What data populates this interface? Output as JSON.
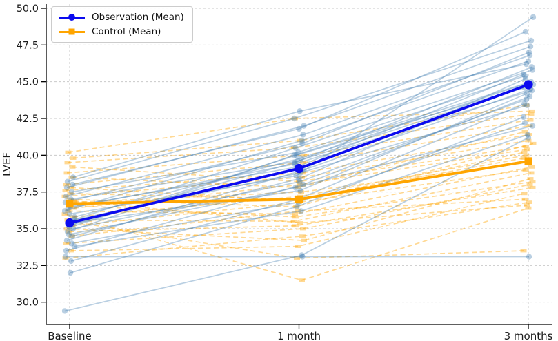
{
  "legend": {
    "items": [
      {
        "label": "Observation (Mean)",
        "color": "#0b0bef",
        "marker": "circle"
      },
      {
        "label": "Control (Mean)",
        "color": "#ffa500",
        "marker": "square"
      }
    ]
  },
  "chart_data": {
    "type": "line",
    "subtype": "spaghetti-paired-trajectories",
    "title": "",
    "xlabel": "",
    "ylabel": "LVEF",
    "categories": [
      "Baseline",
      "1 month",
      "3 months"
    ],
    "yticks": [
      30.0,
      32.5,
      35.0,
      37.5,
      40.0,
      42.5,
      45.0,
      47.5,
      50.0
    ],
    "ylim": [
      28.5,
      50.3
    ],
    "grid": true,
    "grid_style": "dashed",
    "legend_position": "upper left",
    "series": [
      {
        "name": "Observation (Mean)",
        "color": "#0b0bef",
        "style": "solid",
        "marker": "circle",
        "values": [
          35.4,
          39.1,
          44.8
        ]
      },
      {
        "name": "Control (Mean)",
        "color": "#ffa500",
        "style": "solid",
        "marker": "square",
        "values": [
          36.7,
          37.0,
          39.6
        ]
      }
    ],
    "individual_trajectories": {
      "observation": {
        "color": "#4682b4",
        "opacity": 0.38,
        "style": "solid",
        "marker": "circle",
        "lines": [
          [
            29.4,
            33.2,
            41.2
          ],
          [
            32.0,
            36.5,
            42.6
          ],
          [
            33.1,
            33.1,
            33.1
          ],
          [
            32.8,
            37.0,
            43.5
          ],
          [
            33.5,
            38.0,
            44.0
          ],
          [
            34.0,
            36.8,
            42.2
          ],
          [
            34.2,
            39.0,
            44.5
          ],
          [
            34.5,
            38.4,
            45.2
          ],
          [
            34.8,
            40.0,
            45.0
          ],
          [
            35.0,
            38.2,
            43.8
          ],
          [
            35.2,
            39.5,
            46.0
          ],
          [
            35.4,
            37.6,
            44.2
          ],
          [
            35.5,
            40.5,
            45.8
          ],
          [
            35.8,
            39.8,
            44.9
          ],
          [
            36.0,
            38.6,
            49.4
          ],
          [
            36.2,
            41.0,
            46.4
          ],
          [
            36.5,
            39.2,
            45.5
          ],
          [
            36.8,
            40.8,
            47.0
          ],
          [
            37.0,
            39.6,
            44.6
          ],
          [
            37.2,
            41.4,
            46.8
          ],
          [
            37.5,
            40.2,
            45.4
          ],
          [
            37.8,
            42.0,
            47.4
          ],
          [
            38.0,
            41.8,
            48.4
          ],
          [
            38.2,
            42.5,
            47.8
          ],
          [
            38.5,
            43.0,
            46.2
          ],
          [
            36.4,
            39.4,
            44.4
          ],
          [
            35.6,
            38.8,
            43.4
          ],
          [
            34.6,
            37.8,
            42.0
          ],
          [
            33.8,
            36.2,
            41.4
          ],
          [
            35.1,
            40.0,
            44.8
          ]
        ]
      },
      "control": {
        "color": "#ffa500",
        "opacity": 0.42,
        "style": "dashed",
        "marker": "dash",
        "lines": [
          [
            36.0,
            31.5,
            36.4
          ],
          [
            35.5,
            33.0,
            33.5
          ],
          [
            33.0,
            34.5,
            36.8
          ],
          [
            33.5,
            33.8,
            37.4
          ],
          [
            34.0,
            35.0,
            38.0
          ],
          [
            34.5,
            36.2,
            37.0
          ],
          [
            35.0,
            34.2,
            38.4
          ],
          [
            35.2,
            36.8,
            39.0
          ],
          [
            35.6,
            35.5,
            38.8
          ],
          [
            35.8,
            37.2,
            40.0
          ],
          [
            36.2,
            36.0,
            39.2
          ],
          [
            36.4,
            38.0,
            40.4
          ],
          [
            36.6,
            35.8,
            38.2
          ],
          [
            36.8,
            37.5,
            39.5
          ],
          [
            37.0,
            36.5,
            40.8
          ],
          [
            37.2,
            38.5,
            41.0
          ],
          [
            37.4,
            37.0,
            39.8
          ],
          [
            37.6,
            38.8,
            41.4
          ],
          [
            37.8,
            36.9,
            40.2
          ],
          [
            38.0,
            39.5,
            42.0
          ],
          [
            38.5,
            37.8,
            41.6
          ],
          [
            38.8,
            40.0,
            42.4
          ],
          [
            39.2,
            38.2,
            40.6
          ],
          [
            39.5,
            40.5,
            42.8
          ],
          [
            39.8,
            41.0,
            43.4
          ],
          [
            40.2,
            42.5,
            43.0
          ],
          [
            36.9,
            35.4,
            36.6
          ],
          [
            34.8,
            35.2,
            37.8
          ]
        ]
      }
    },
    "colors": {
      "grid": "#c9c9c9",
      "spine": "#000000",
      "tick_label": "#1a1a1a",
      "observation_mean": "#0b0bef",
      "control_mean": "#ffa500",
      "observation_individual": "#4682b4",
      "control_individual": "#ffa500"
    }
  }
}
